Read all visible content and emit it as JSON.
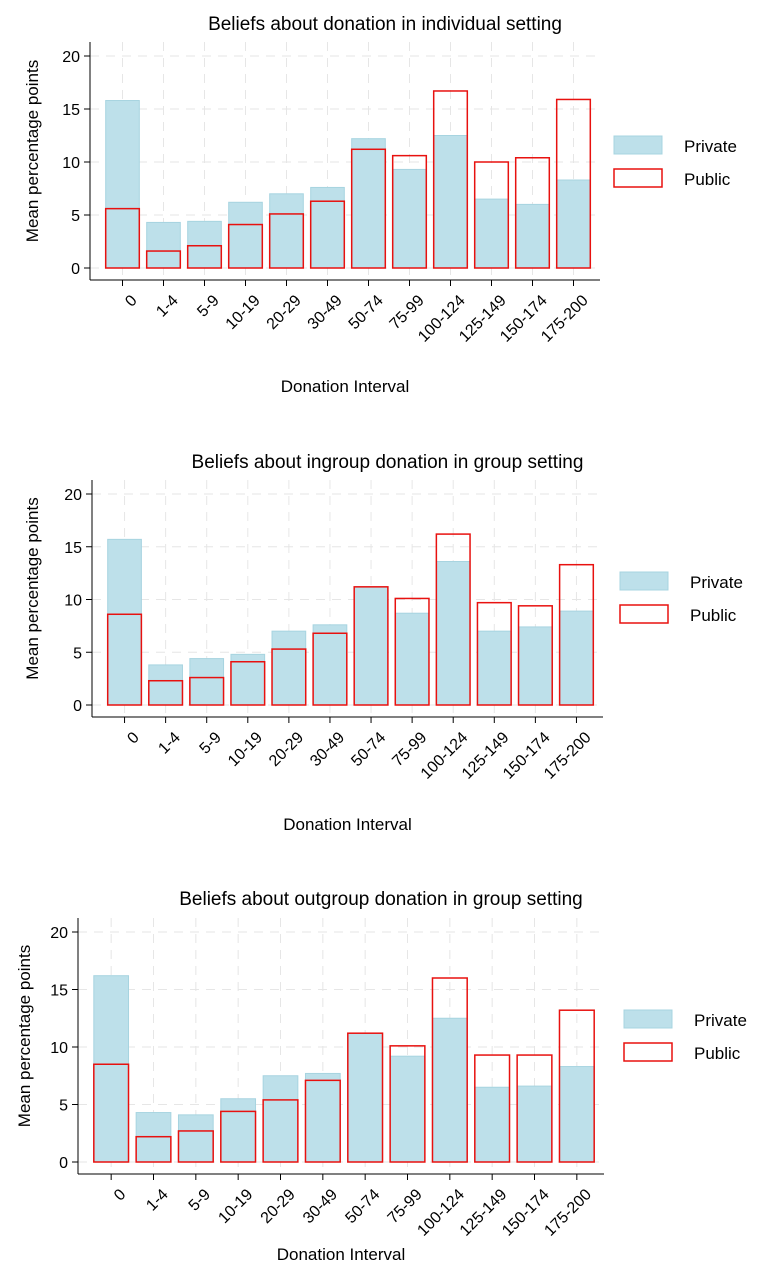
{
  "colors": {
    "private_fill": "#bde0ea",
    "public_stroke": "#e8110f"
  },
  "chart_data": [
    {
      "type": "bar",
      "title": "Beliefs about donation in individual setting",
      "xlabel": "Donation Interval",
      "ylabel": "Mean percentage points",
      "ylim": [
        0,
        20
      ],
      "yticks": [
        0,
        5,
        10,
        15,
        20
      ],
      "grid": true,
      "legend_position": "right",
      "categories": [
        "0",
        "1-4",
        "5-9",
        "10-19",
        "20-29",
        "30-49",
        "50-74",
        "75-99",
        "100-124",
        "125-149",
        "150-174",
        "175-200"
      ],
      "series": [
        {
          "name": "Private",
          "style": "filled",
          "values": [
            15.8,
            4.3,
            4.4,
            6.2,
            7.0,
            7.6,
            12.2,
            9.3,
            12.5,
            6.5,
            6.0,
            8.3
          ]
        },
        {
          "name": "Public",
          "style": "outline",
          "values": [
            5.6,
            1.6,
            2.1,
            4.1,
            5.1,
            6.3,
            11.2,
            10.6,
            16.7,
            10.0,
            10.4,
            15.9
          ]
        }
      ]
    },
    {
      "type": "bar",
      "title": "Beliefs about ingroup donation in group setting",
      "xlabel": "Donation Interval",
      "ylabel": "Mean percentage points",
      "ylim": [
        0,
        20
      ],
      "yticks": [
        0,
        5,
        10,
        15,
        20
      ],
      "grid": true,
      "legend_position": "right",
      "categories": [
        "0",
        "1-4",
        "5-9",
        "10-19",
        "20-29",
        "30-49",
        "50-74",
        "75-99",
        "100-124",
        "125-149",
        "150-174",
        "175-200"
      ],
      "series": [
        {
          "name": "Private",
          "style": "filled",
          "values": [
            15.7,
            3.8,
            4.4,
            4.8,
            7.0,
            7.6,
            11.2,
            8.7,
            13.6,
            7.0,
            7.4,
            8.9
          ]
        },
        {
          "name": "Public",
          "style": "outline",
          "values": [
            8.6,
            2.3,
            2.6,
            4.1,
            5.3,
            6.8,
            11.2,
            10.1,
            16.2,
            9.7,
            9.4,
            13.3
          ]
        }
      ]
    },
    {
      "type": "bar",
      "title": "Beliefs about outgroup donation in group setting",
      "xlabel": "Donation Interval",
      "ylabel": "Mean percentage points",
      "ylim": [
        0,
        20
      ],
      "yticks": [
        0,
        5,
        10,
        15,
        20
      ],
      "grid": true,
      "legend_position": "right",
      "categories": [
        "0",
        "1-4",
        "5-9",
        "10-19",
        "20-29",
        "30-49",
        "50-74",
        "75-99",
        "100-124",
        "125-149",
        "150-174",
        "175-200"
      ],
      "series": [
        {
          "name": "Private",
          "style": "filled",
          "values": [
            16.2,
            4.3,
            4.1,
            5.5,
            7.5,
            7.7,
            11.2,
            9.2,
            12.5,
            6.5,
            6.6,
            8.3
          ]
        },
        {
          "name": "Public",
          "style": "outline",
          "values": [
            8.5,
            2.2,
            2.7,
            4.4,
            5.4,
            7.1,
            11.2,
            10.1,
            16.0,
            9.3,
            9.3,
            13.2
          ]
        }
      ]
    }
  ]
}
